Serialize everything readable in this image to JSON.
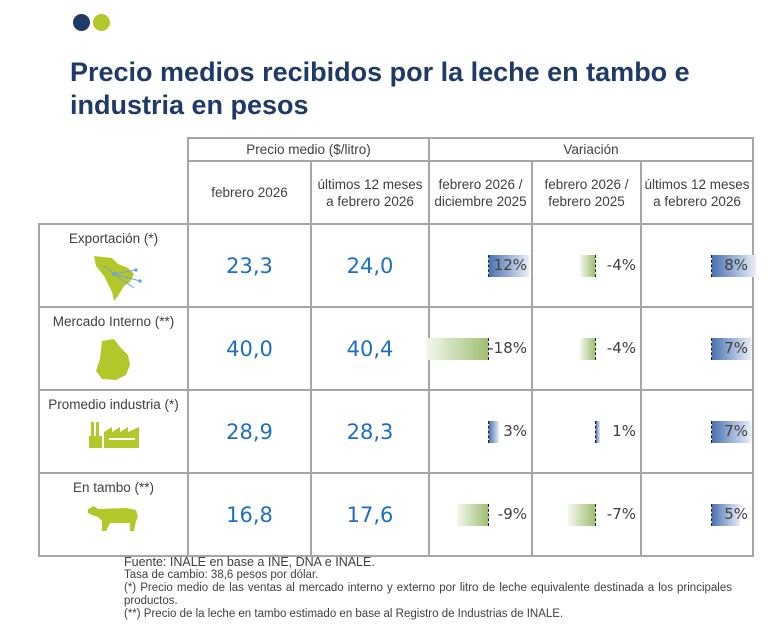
{
  "colors": {
    "navy": "#1f3a68",
    "lime": "#b4c72a",
    "value": "#1e6fc0"
  },
  "title": "Precio medios recibidos por la leche en tambo e\nindustria en pesos",
  "table": {
    "group_price": "Precio medio ($/litro)",
    "group_variation": "Variación",
    "cols": [
      "febrero 2026",
      "últimos 12 meses a febrero 2026",
      "febrero 2026 / diciembre 2025",
      "febrero 2026 / febrero 2025",
      "últimos 12 meses a febrero 2026"
    ],
    "rows": [
      {
        "label": "Exportación (*)",
        "icon": "south-america-map-icon",
        "feb": "23,3",
        "last12": "24,0",
        "var": [
          12,
          -4,
          8
        ],
        "var_text": [
          "12%",
          "-4%",
          "8%"
        ]
      },
      {
        "label": "Mercado Interno (**)",
        "icon": "uruguay-map-icon",
        "feb": "40,0",
        "last12": "40,4",
        "var": [
          -18,
          -4,
          7
        ],
        "var_text": [
          "-18%",
          "-4%",
          "7%"
        ]
      },
      {
        "label": "Promedio industria (*)",
        "icon": "factory-icon",
        "feb": "28,9",
        "last12": "28,3",
        "var": [
          3,
          1,
          7
        ],
        "var_text": [
          "3%",
          "1%",
          "7%"
        ]
      },
      {
        "label": "En tambo (**)",
        "icon": "cow-icon",
        "feb": "16,8",
        "last12": "17,6",
        "var": [
          -9,
          -7,
          5
        ],
        "var_text": [
          "-9%",
          "-7%",
          "5%"
        ]
      }
    ]
  },
  "notes": {
    "source": "Fuente: INALE en base a INE, DNA e INALE.",
    "exchange": "Tasa de cambio: 38,6 pesos por dólar.",
    "note1": "(*) Precio medio de las ventas al mercado interno y externo por litro de leche equivalente destinada a los principales productos.",
    "note2": "(**) Precio de la leche en tambo estimado en base al Registro de Industrias de INALE."
  }
}
